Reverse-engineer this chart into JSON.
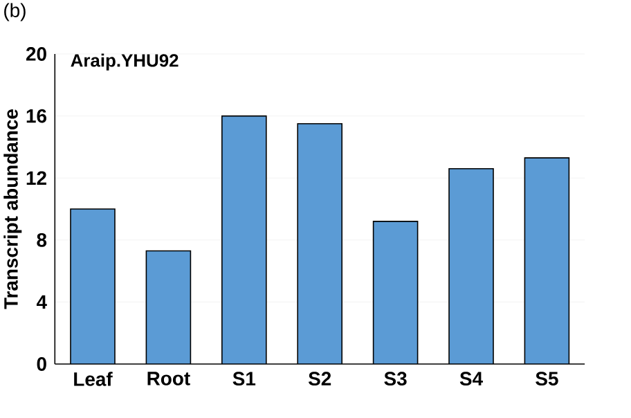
{
  "chart_data": {
    "type": "bar",
    "title": "Araip.YHU92",
    "ylabel": "Transcript abundance",
    "annotations": [
      "(b)"
    ],
    "categories": [
      "Leaf",
      "Root",
      "S1",
      "S2",
      "S3",
      "S4",
      "S5"
    ],
    "values": [
      10.0,
      7.3,
      16.0,
      15.5,
      9.2,
      12.6,
      13.3
    ],
    "color": "#5b9bd5",
    "ylim": [
      0,
      20
    ],
    "yticks": [
      0,
      4,
      8,
      12,
      16,
      20
    ],
    "grid": "y"
  }
}
